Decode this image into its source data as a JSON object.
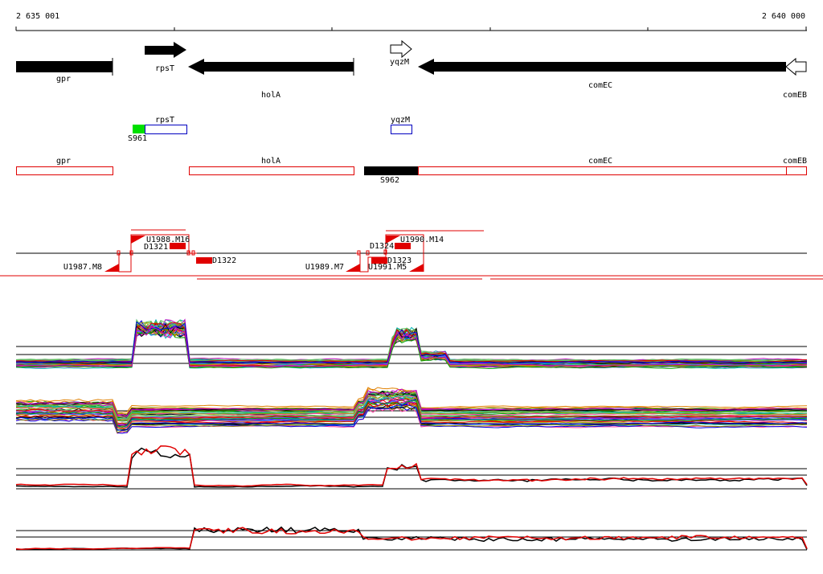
{
  "ruler": {
    "start": "2 635 001",
    "end": "2 640 000"
  },
  "genes": [
    {
      "label": "gpr"
    },
    {
      "label": "rpsT"
    },
    {
      "label": "holA"
    },
    {
      "label": "yqzM"
    },
    {
      "label": "comEC"
    },
    {
      "label": "comEB"
    }
  ],
  "cds": [
    {
      "label": "rpsT"
    },
    {
      "label": "yqzM"
    },
    {
      "label": "S961"
    }
  ],
  "transcripts": [
    {
      "label": "gpr"
    },
    {
      "label": "holA"
    },
    {
      "label": "comEC"
    },
    {
      "label": "comEB"
    },
    {
      "label": "S962"
    }
  ],
  "probes": [
    {
      "label": "U1988.M16"
    },
    {
      "label": "D1321"
    },
    {
      "label": "D1322"
    },
    {
      "label": "U1987.M8"
    },
    {
      "label": "U1989.M7"
    },
    {
      "label": "D1324"
    },
    {
      "label": "U1990.M14"
    },
    {
      "label": "D1323"
    },
    {
      "label": "U1991.M5"
    }
  ]
}
